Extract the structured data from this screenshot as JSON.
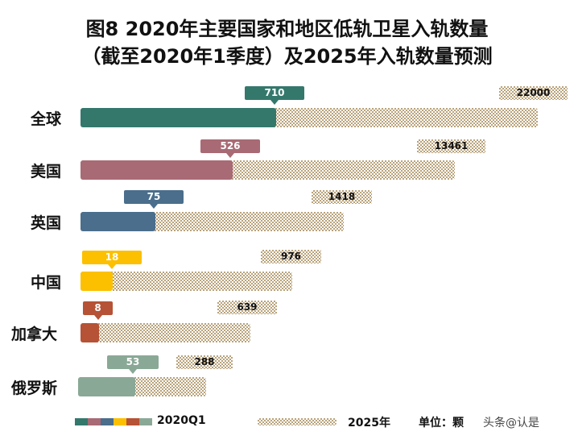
{
  "chart_data": {
    "type": "bar",
    "orientation": "horizontal",
    "title": "图8  2020年主要国家和地区低轨卫星入轨数量",
    "subtitle": "（截至2020年1季度）及2025年入轨数量预测",
    "categories": [
      "全球",
      "美国",
      "英国",
      "中国",
      "加拿大",
      "俄罗斯"
    ],
    "series": [
      {
        "name": "2020Q1",
        "values": [
          710,
          526,
          75,
          18,
          8,
          53
        ],
        "colors": [
          "#34786c",
          "#a86a74",
          "#4a6e8c",
          "#fcc000",
          "#b65235",
          "#8aa896"
        ]
      },
      {
        "name": "2025年",
        "values": [
          22000,
          13461,
          1418,
          976,
          639,
          288
        ],
        "color": "#b9a27a",
        "pattern": "checker"
      }
    ],
    "unit": "单位：颗",
    "legend_position": "bottom",
    "grid": false
  },
  "watermark": "头条@认是"
}
